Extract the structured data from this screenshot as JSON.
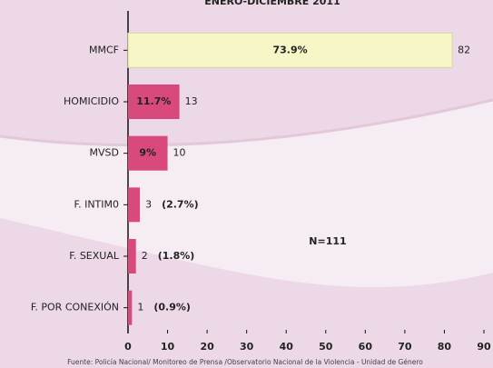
{
  "chart_data": {
    "type": "bar",
    "orientation": "horizontal",
    "title": "ENERO-DICIEMBRE 2011",
    "categories": [
      "MMCF",
      "HOMICIDIO",
      "MVSD",
      "F. INTIM0",
      "F. SEXUAL",
      "F. POR CONEXIÓN"
    ],
    "values": [
      82,
      13,
      10,
      3,
      2,
      1
    ],
    "percents": [
      73.9,
      11.7,
      9,
      2.7,
      1.8,
      0.9
    ],
    "percent_labels": [
      "73.9%",
      "11.7%",
      "9%",
      "(2.7%)",
      "(1.8%)",
      "(0.9%)"
    ],
    "colors": [
      "#f7f6c6",
      "#d94a7c",
      "#d94a7c",
      "#d94a7c",
      "#d94a7c",
      "#d94a7c"
    ],
    "xlim": [
      0,
      90
    ],
    "xticks": [
      0,
      10,
      20,
      30,
      40,
      50,
      60,
      70,
      80,
      90
    ],
    "annotation": "N=111",
    "source": "Fuente: Policía Nacional/ Monitoreo de Prensa /Observatorio Nacional de la Violencia - Unidad de Género"
  }
}
